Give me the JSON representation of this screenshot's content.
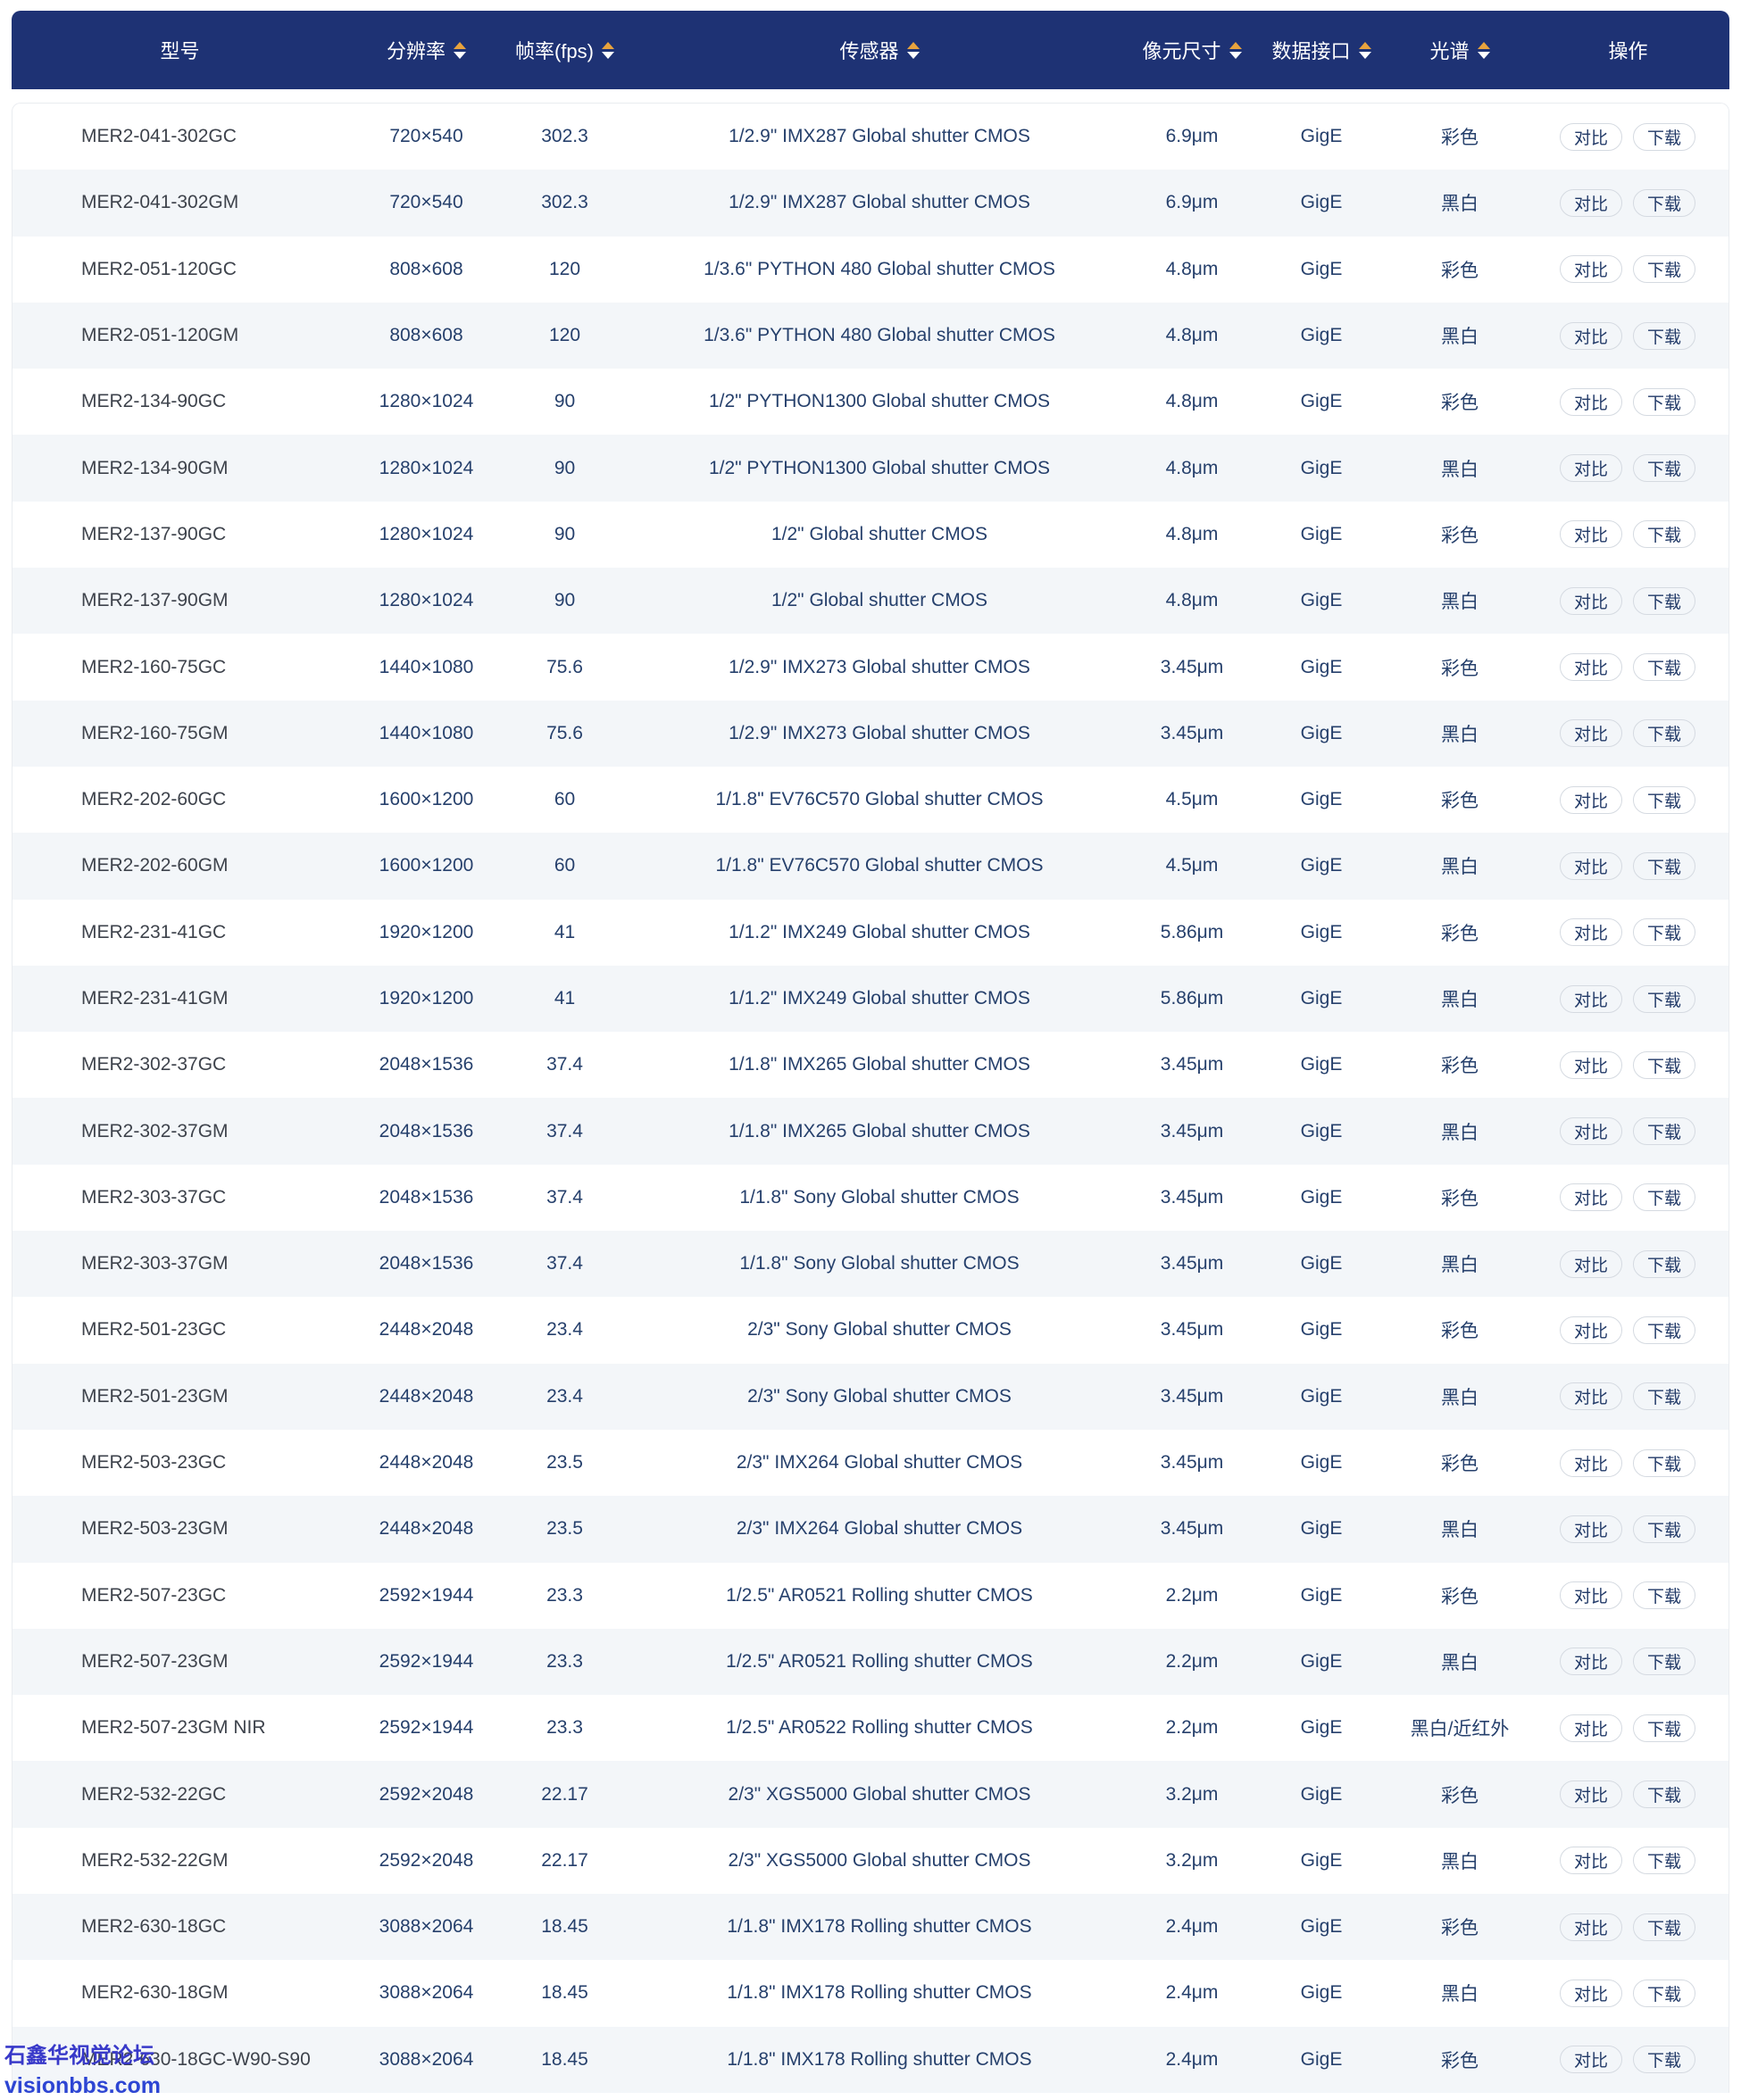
{
  "table": {
    "columns": [
      {
        "label": "型号",
        "sortable": false
      },
      {
        "label": "分辨率",
        "sortable": true
      },
      {
        "label": "帧率(fps)",
        "sortable": true
      },
      {
        "label": "传感器",
        "sortable": true
      },
      {
        "label": "像元尺寸",
        "sortable": true
      },
      {
        "label": "数据接口",
        "sortable": true
      },
      {
        "label": "光谱",
        "sortable": true
      },
      {
        "label": "操作",
        "sortable": false
      }
    ],
    "actions": {
      "compare": "对比",
      "download": "下载"
    },
    "rows": [
      {
        "model": "MER2-041-302GC",
        "resolution": "720×540",
        "fps": "302.3",
        "sensor": "1/2.9\" IMX287 Global shutter CMOS",
        "pixel_size": "6.9μm",
        "interface": "GigE",
        "spectrum": "彩色"
      },
      {
        "model": "MER2-041-302GM",
        "resolution": "720×540",
        "fps": "302.3",
        "sensor": "1/2.9\" IMX287 Global shutter CMOS",
        "pixel_size": "6.9μm",
        "interface": "GigE",
        "spectrum": "黑白"
      },
      {
        "model": "MER2-051-120GC",
        "resolution": "808×608",
        "fps": "120",
        "sensor": "1/3.6\" PYTHON 480 Global shutter CMOS",
        "pixel_size": "4.8μm",
        "interface": "GigE",
        "spectrum": "彩色"
      },
      {
        "model": "MER2-051-120GM",
        "resolution": "808×608",
        "fps": "120",
        "sensor": "1/3.6\" PYTHON 480 Global shutter CMOS",
        "pixel_size": "4.8μm",
        "interface": "GigE",
        "spectrum": "黑白"
      },
      {
        "model": "MER2-134-90GC",
        "resolution": "1280×1024",
        "fps": "90",
        "sensor": "1/2\" PYTHON1300 Global shutter CMOS",
        "pixel_size": "4.8μm",
        "interface": "GigE",
        "spectrum": "彩色"
      },
      {
        "model": "MER2-134-90GM",
        "resolution": "1280×1024",
        "fps": "90",
        "sensor": "1/2\" PYTHON1300 Global shutter CMOS",
        "pixel_size": "4.8μm",
        "interface": "GigE",
        "spectrum": "黑白"
      },
      {
        "model": "MER2-137-90GC",
        "resolution": "1280×1024",
        "fps": "90",
        "sensor": "1/2\" Global shutter CMOS",
        "pixel_size": "4.8μm",
        "interface": "GigE",
        "spectrum": "彩色"
      },
      {
        "model": "MER2-137-90GM",
        "resolution": "1280×1024",
        "fps": "90",
        "sensor": "1/2\" Global shutter CMOS",
        "pixel_size": "4.8μm",
        "interface": "GigE",
        "spectrum": "黑白"
      },
      {
        "model": "MER2-160-75GC",
        "resolution": "1440×1080",
        "fps": "75.6",
        "sensor": "1/2.9\" IMX273 Global shutter CMOS",
        "pixel_size": "3.45μm",
        "interface": "GigE",
        "spectrum": "彩色"
      },
      {
        "model": "MER2-160-75GM",
        "resolution": "1440×1080",
        "fps": "75.6",
        "sensor": "1/2.9\" IMX273 Global shutter CMOS",
        "pixel_size": "3.45μm",
        "interface": "GigE",
        "spectrum": "黑白"
      },
      {
        "model": "MER2-202-60GC",
        "resolution": "1600×1200",
        "fps": "60",
        "sensor": "1/1.8\" EV76C570 Global shutter CMOS",
        "pixel_size": "4.5μm",
        "interface": "GigE",
        "spectrum": "彩色"
      },
      {
        "model": "MER2-202-60GM",
        "resolution": "1600×1200",
        "fps": "60",
        "sensor": "1/1.8\" EV76C570 Global shutter CMOS",
        "pixel_size": "4.5μm",
        "interface": "GigE",
        "spectrum": "黑白"
      },
      {
        "model": "MER2-231-41GC",
        "resolution": "1920×1200",
        "fps": "41",
        "sensor": "1/1.2\" IMX249 Global shutter CMOS",
        "pixel_size": "5.86μm",
        "interface": "GigE",
        "spectrum": "彩色"
      },
      {
        "model": "MER2-231-41GM",
        "resolution": "1920×1200",
        "fps": "41",
        "sensor": "1/1.2\" IMX249 Global shutter CMOS",
        "pixel_size": "5.86μm",
        "interface": "GigE",
        "spectrum": "黑白"
      },
      {
        "model": "MER2-302-37GC",
        "resolution": "2048×1536",
        "fps": "37.4",
        "sensor": "1/1.8\" IMX265 Global shutter CMOS",
        "pixel_size": "3.45μm",
        "interface": "GigE",
        "spectrum": "彩色"
      },
      {
        "model": "MER2-302-37GM",
        "resolution": "2048×1536",
        "fps": "37.4",
        "sensor": "1/1.8\" IMX265 Global shutter CMOS",
        "pixel_size": "3.45μm",
        "interface": "GigE",
        "spectrum": "黑白"
      },
      {
        "model": "MER2-303-37GC",
        "resolution": "2048×1536",
        "fps": "37.4",
        "sensor": "1/1.8\" Sony Global shutter CMOS",
        "pixel_size": "3.45μm",
        "interface": "GigE",
        "spectrum": "彩色"
      },
      {
        "model": "MER2-303-37GM",
        "resolution": "2048×1536",
        "fps": "37.4",
        "sensor": "1/1.8\" Sony Global shutter CMOS",
        "pixel_size": "3.45μm",
        "interface": "GigE",
        "spectrum": "黑白"
      },
      {
        "model": "MER2-501-23GC",
        "resolution": "2448×2048",
        "fps": "23.4",
        "sensor": "2/3\" Sony Global shutter CMOS",
        "pixel_size": "3.45μm",
        "interface": "GigE",
        "spectrum": "彩色"
      },
      {
        "model": "MER2-501-23GM",
        "resolution": "2448×2048",
        "fps": "23.4",
        "sensor": "2/3\" Sony Global shutter CMOS",
        "pixel_size": "3.45μm",
        "interface": "GigE",
        "spectrum": "黑白"
      },
      {
        "model": "MER2-503-23GC",
        "resolution": "2448×2048",
        "fps": "23.5",
        "sensor": "2/3\" IMX264 Global shutter CMOS",
        "pixel_size": "3.45μm",
        "interface": "GigE",
        "spectrum": "彩色"
      },
      {
        "model": "MER2-503-23GM",
        "resolution": "2448×2048",
        "fps": "23.5",
        "sensor": "2/3\" IMX264 Global shutter CMOS",
        "pixel_size": "3.45μm",
        "interface": "GigE",
        "spectrum": "黑白"
      },
      {
        "model": "MER2-507-23GC",
        "resolution": "2592×1944",
        "fps": "23.3",
        "sensor": "1/2.5\" AR0521 Rolling shutter CMOS",
        "pixel_size": "2.2μm",
        "interface": "GigE",
        "spectrum": "彩色"
      },
      {
        "model": "MER2-507-23GM",
        "resolution": "2592×1944",
        "fps": "23.3",
        "sensor": "1/2.5\" AR0521 Rolling shutter CMOS",
        "pixel_size": "2.2μm",
        "interface": "GigE",
        "spectrum": "黑白"
      },
      {
        "model": "MER2-507-23GM NIR",
        "resolution": "2592×1944",
        "fps": "23.3",
        "sensor": "1/2.5\" AR0522 Rolling shutter CMOS",
        "pixel_size": "2.2μm",
        "interface": "GigE",
        "spectrum": "黑白/近红外"
      },
      {
        "model": "MER2-532-22GC",
        "resolution": "2592×2048",
        "fps": "22.17",
        "sensor": "2/3\" XGS5000 Global shutter CMOS",
        "pixel_size": "3.2μm",
        "interface": "GigE",
        "spectrum": "彩色"
      },
      {
        "model": "MER2-532-22GM",
        "resolution": "2592×2048",
        "fps": "22.17",
        "sensor": "2/3\" XGS5000 Global shutter CMOS",
        "pixel_size": "3.2μm",
        "interface": "GigE",
        "spectrum": "黑白"
      },
      {
        "model": "MER2-630-18GC",
        "resolution": "3088×2064",
        "fps": "18.45",
        "sensor": "1/1.8\" IMX178 Rolling shutter CMOS",
        "pixel_size": "2.4μm",
        "interface": "GigE",
        "spectrum": "彩色"
      },
      {
        "model": "MER2-630-18GM",
        "resolution": "3088×2064",
        "fps": "18.45",
        "sensor": "1/1.8\" IMX178 Rolling shutter CMOS",
        "pixel_size": "2.4μm",
        "interface": "GigE",
        "spectrum": "黑白"
      },
      {
        "model": "MER2-630-18GC-W90-S90",
        "resolution": "3088×2064",
        "fps": "18.45",
        "sensor": "1/1.8\" IMX178 Rolling shutter CMOS",
        "pixel_size": "2.4μm",
        "interface": "GigE",
        "spectrum": "彩色"
      }
    ]
  },
  "watermark": {
    "line1": "石鑫华视觉论坛",
    "line2": "visionbbs.com"
  },
  "colors": {
    "header_bg": "#1e3274",
    "header_text": "#ffffff",
    "sort_arrow_active": "#e8a33d",
    "row_alt_bg": "#f3f6f9",
    "value_text": "#26406c",
    "model_text": "#3e434c",
    "button_border": "#d5dae1",
    "watermark_blue": "#2d45d3"
  }
}
